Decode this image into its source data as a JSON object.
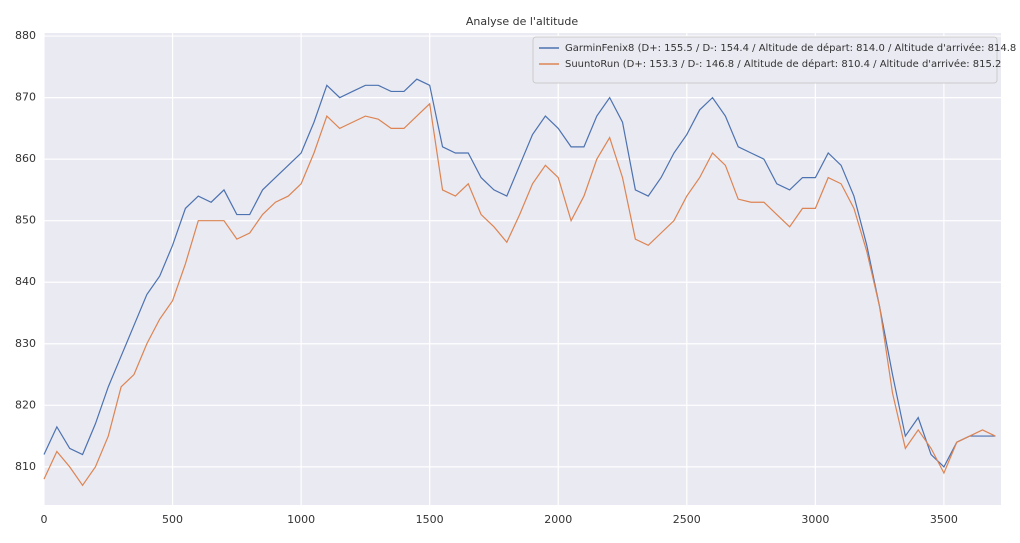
{
  "chart_data": {
    "type": "line",
    "title": "Analyse de l'altitude",
    "x": [
      0,
      50,
      100,
      150,
      200,
      250,
      300,
      350,
      400,
      450,
      500,
      550,
      600,
      650,
      700,
      750,
      800,
      850,
      900,
      950,
      1000,
      1050,
      1100,
      1150,
      1200,
      1250,
      1300,
      1350,
      1400,
      1450,
      1500,
      1550,
      1600,
      1650,
      1700,
      1750,
      1800,
      1850,
      1900,
      1950,
      2000,
      2050,
      2100,
      2150,
      2200,
      2250,
      2300,
      2350,
      2400,
      2450,
      2500,
      2550,
      2600,
      2650,
      2700,
      2750,
      2800,
      2850,
      2900,
      2950,
      3000,
      3050,
      3100,
      3150,
      3200,
      3250,
      3300,
      3350,
      3400,
      3450,
      3500,
      3550,
      3600,
      3650,
      3700
    ],
    "series": [
      {
        "name": "GarminFenix8 (D+: 155.5 / D-: 154.4 / Altitude de départ: 814.0 / Altitude d'arrivée: 814.8",
        "color": "#4c72b0",
        "values": [
          812,
          816.5,
          813,
          812,
          817,
          823,
          828,
          833,
          838,
          841,
          846,
          852,
          854,
          853,
          855,
          851,
          851,
          855,
          857,
          859,
          861,
          866,
          872,
          870,
          871,
          872,
          872,
          871,
          871,
          873,
          872,
          862,
          861,
          861,
          857,
          855,
          854,
          859,
          864,
          867,
          865,
          862,
          862,
          867,
          870,
          866,
          855,
          854,
          857,
          861,
          864,
          868,
          870,
          867,
          862,
          861,
          860,
          856,
          855,
          857,
          857,
          861,
          859,
          854,
          846,
          836,
          825,
          815,
          818,
          812,
          810,
          814,
          815,
          815,
          815
        ]
      },
      {
        "name": "SuuntoRun (D+: 153.3 / D-: 146.8 / Altitude de départ: 810.4 / Altitude d'arrivée: 815.2",
        "color": "#dd8452",
        "values": [
          808,
          812.5,
          810,
          807,
          810,
          815,
          823,
          825,
          830,
          834,
          837,
          843,
          850,
          850,
          850,
          847,
          848,
          851,
          853,
          854,
          856,
          861,
          867,
          865,
          866,
          867,
          866.5,
          865,
          865,
          867,
          869,
          855,
          854,
          856,
          851,
          849,
          846.5,
          851,
          856,
          859,
          857,
          850,
          854,
          860,
          863.5,
          857,
          847,
          846,
          848,
          850,
          854,
          857,
          861,
          859,
          853.5,
          853,
          853,
          851,
          849,
          852,
          852,
          857,
          856,
          852,
          845,
          836,
          822,
          813,
          816,
          813,
          809,
          814,
          815,
          816,
          815
        ]
      }
    ],
    "xlim": [
      0,
      3722
    ],
    "xticks": [
      0,
      500,
      1000,
      1500,
      2000,
      2500,
      3000,
      3500
    ],
    "ylim": [
      803.8,
      880.5
    ],
    "yticks": [
      810,
      820,
      830,
      840,
      850,
      860,
      870,
      880
    ],
    "grid": true,
    "legend": "upper right"
  }
}
